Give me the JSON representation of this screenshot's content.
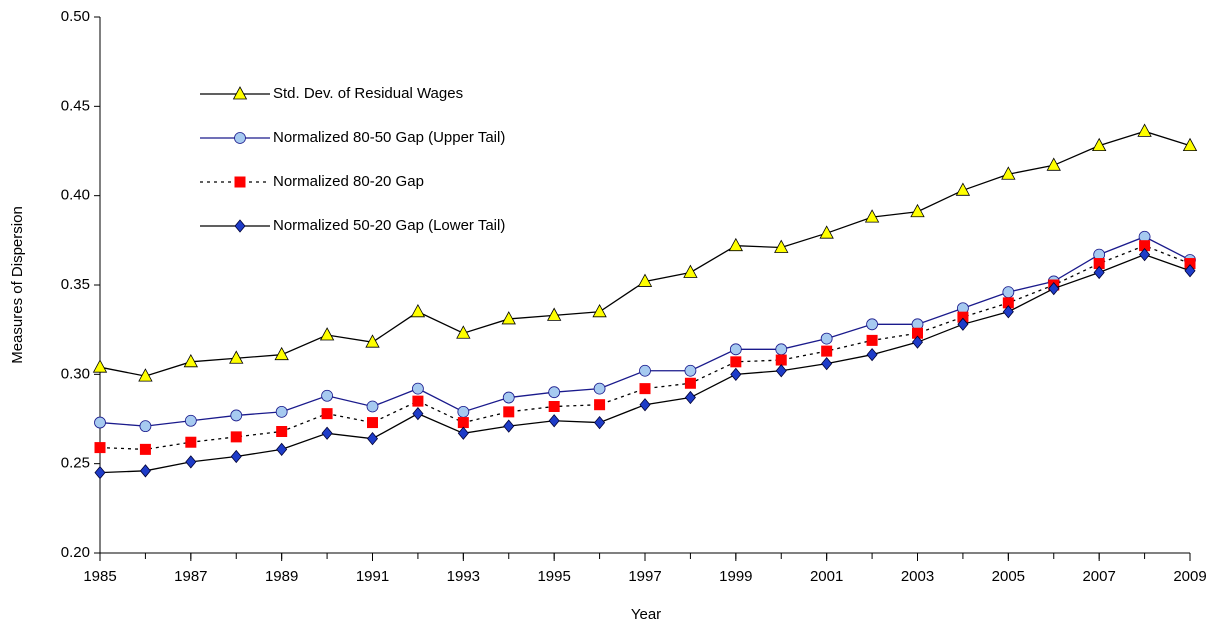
{
  "chart_data": {
    "type": "line",
    "xlabel": "Year",
    "ylabel": "Measures of Dispersion",
    "x": [
      1985,
      1986,
      1987,
      1988,
      1989,
      1990,
      1991,
      1992,
      1993,
      1994,
      1995,
      1996,
      1997,
      1998,
      1999,
      2000,
      2001,
      2002,
      2003,
      2004,
      2005,
      2006,
      2007,
      2008,
      2009
    ],
    "series": [
      {
        "name": "Std. Dev. of Residual Wages",
        "color": "#ffff00",
        "line_color": "#000000",
        "marker": "triangle",
        "dash": "solid",
        "values": [
          0.304,
          0.299,
          0.307,
          0.309,
          0.311,
          0.322,
          0.318,
          0.335,
          0.323,
          0.331,
          0.333,
          0.335,
          0.352,
          0.357,
          0.372,
          0.371,
          0.379,
          0.388,
          0.391,
          0.403,
          0.412,
          0.417,
          0.428,
          0.436,
          0.428
        ]
      },
      {
        "name": "Normalized 80-50 Gap (Upper Tail)",
        "color": "#a6caf0",
        "line_color": "#1a1a8c",
        "marker": "circle",
        "dash": "solid",
        "values": [
          0.273,
          0.271,
          0.274,
          0.277,
          0.279,
          0.288,
          0.282,
          0.292,
          0.279,
          0.287,
          0.29,
          0.292,
          0.302,
          0.302,
          0.314,
          0.314,
          0.32,
          0.328,
          0.328,
          0.337,
          0.346,
          0.352,
          0.367,
          0.377,
          0.364
        ]
      },
      {
        "name": "Normalized 80-20 Gap",
        "color": "#ff0000",
        "line_color": "#000000",
        "marker": "square",
        "dash": "dotted",
        "values": [
          0.259,
          0.258,
          0.262,
          0.265,
          0.268,
          0.278,
          0.273,
          0.285,
          0.273,
          0.279,
          0.282,
          0.283,
          0.292,
          0.295,
          0.307,
          0.308,
          0.313,
          0.319,
          0.323,
          0.332,
          0.34,
          0.35,
          0.362,
          0.372,
          0.362
        ]
      },
      {
        "name": "Normalized 50-20 Gap (Lower Tail)",
        "color": "#1e3cc8",
        "line_color": "#000000",
        "marker": "diamond",
        "dash": "solid",
        "values": [
          0.245,
          0.246,
          0.251,
          0.254,
          0.258,
          0.267,
          0.264,
          0.278,
          0.267,
          0.271,
          0.274,
          0.273,
          0.283,
          0.287,
          0.3,
          0.302,
          0.306,
          0.311,
          0.318,
          0.328,
          0.335,
          0.348,
          0.357,
          0.367,
          0.358
        ]
      }
    ],
    "xlim": [
      1985,
      2009
    ],
    "xticks": [
      1985,
      1987,
      1989,
      1991,
      1993,
      1995,
      1997,
      1999,
      2001,
      2003,
      2005,
      2007,
      2009
    ],
    "ylim": [
      0.2,
      0.5
    ],
    "yticks": [
      {
        "value": 0.2,
        "label": "0.20"
      },
      {
        "value": 0.25,
        "label": "0.25"
      },
      {
        "value": 0.3,
        "label": "0.30"
      },
      {
        "value": 0.35,
        "label": "0.35"
      },
      {
        "value": 0.4,
        "label": "0.40"
      },
      {
        "value": 0.45,
        "label": "0.45"
      },
      {
        "value": 0.5,
        "label": "0.50"
      }
    ],
    "grid": false,
    "legend": "upper left"
  }
}
